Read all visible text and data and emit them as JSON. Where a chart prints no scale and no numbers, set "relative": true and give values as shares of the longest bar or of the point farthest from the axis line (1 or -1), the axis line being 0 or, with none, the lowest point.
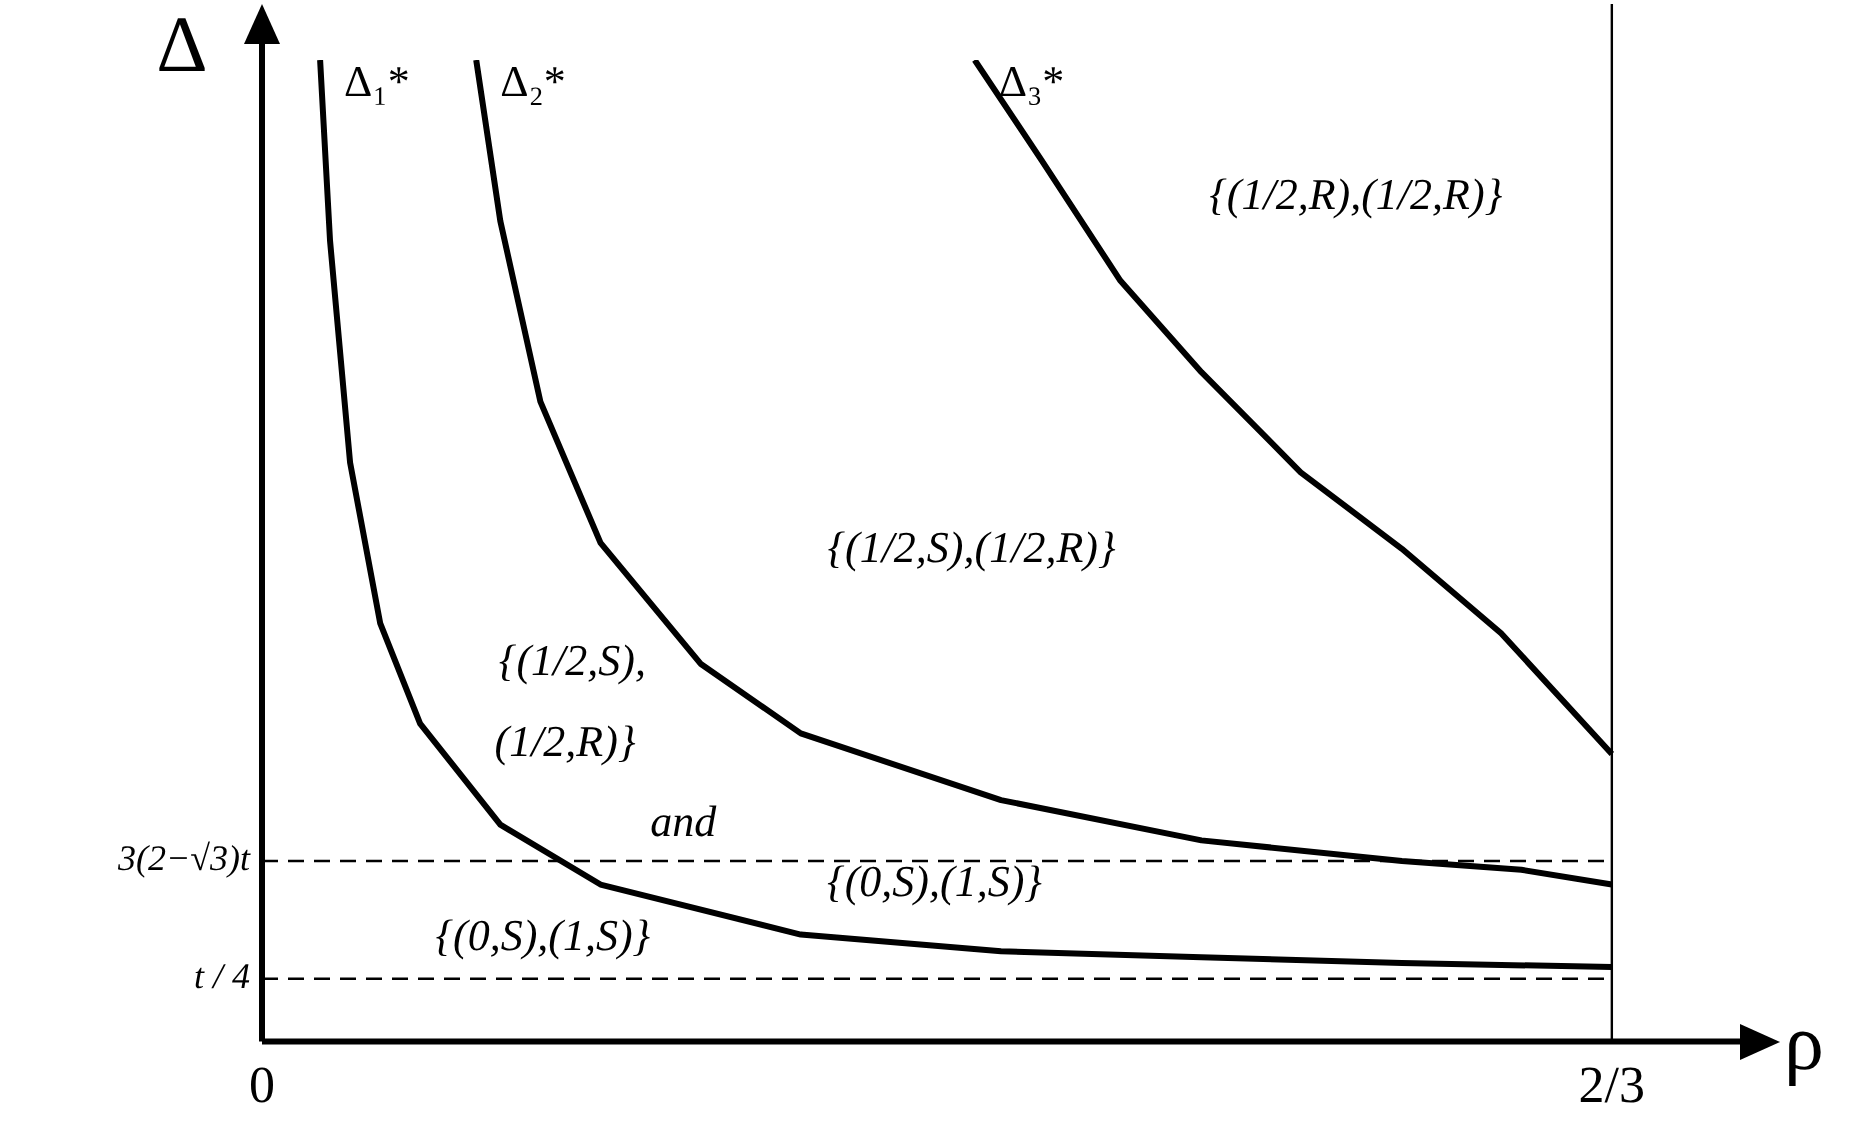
{
  "chart_data": {
    "type": "line",
    "relative": true,
    "xlabel": "ρ",
    "ylabel": "Δ",
    "xlim": [
      0,
      0.73
    ],
    "xticks": [
      0,
      {
        "value": 0.6667,
        "label": "2/3"
      }
    ],
    "grid": false,
    "legend": false,
    "marker": "none",
    "line_style": "solid",
    "series": [
      {
        "name": "Δ₁*",
        "color": "#000000",
        "x": [
          0.0287,
          0.0336,
          0.0435,
          0.0584,
          0.0781,
          0.1177,
          0.1672,
          0.2661,
          0.365,
          0.464,
          0.563,
          0.6667
        ],
        "values": [
          1,
          0.816,
          0.59,
          0.426,
          0.324,
          0.221,
          0.16,
          0.109,
          0.092,
          0.086,
          0.08,
          0.076
        ]
      },
      {
        "name": "Δ₂*",
        "color": "#000000",
        "x": [
          0.1058,
          0.1177,
          0.1375,
          0.1672,
          0.2166,
          0.2661,
          0.365,
          0.464,
          0.563,
          0.622,
          0.6667
        ],
        "values": [
          1,
          0.836,
          0.652,
          0.508,
          0.385,
          0.314,
          0.246,
          0.205,
          0.184,
          0.175,
          0.16
        ]
      },
      {
        "name": "Δ₃*",
        "color": "#000000",
        "x": [
          0.352,
          0.385,
          0.424,
          0.464,
          0.513,
          0.563,
          0.612,
          0.6667
        ],
        "values": [
          1,
          0.898,
          0.775,
          0.682,
          0.58,
          0.502,
          0.416,
          0.293
        ]
      }
    ],
    "ref_lines": [
      {
        "axis": "y",
        "value": 0.184,
        "label": "3(2−√3)t",
        "line_style": "dashed"
      },
      {
        "axis": "y",
        "value": 0.064,
        "label": "t / 4",
        "line_style": "dashed"
      },
      {
        "axis": "x",
        "value": 0.6667,
        "line_style": "solid"
      }
    ],
    "annotations": [
      "{(1/2,R),(1/2,R)}",
      "{(1/2,S),(1/2,R)}",
      "{(1/2,S),",
      "(1/2,R)}",
      "and",
      "{(0,S),(1,S)}",
      "{(0,S),(1,S)}"
    ]
  }
}
